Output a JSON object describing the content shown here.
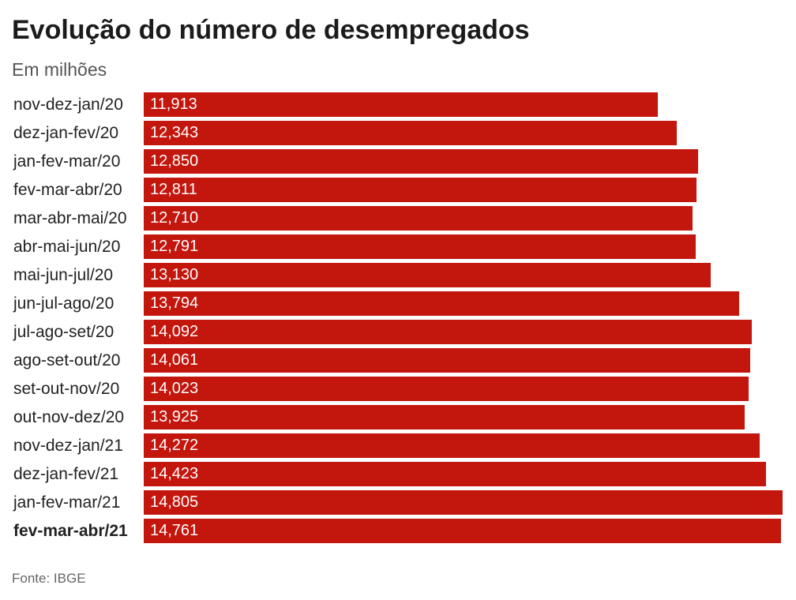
{
  "colors": {
    "bar": "#c3160d",
    "bar_text": "#ffffff",
    "text": "#222222",
    "muted_text": "#555555"
  },
  "chart_data": {
    "type": "bar",
    "orientation": "horizontal",
    "title": "Evolução do número de desempregados",
    "subtitle": "Em milhões",
    "source": "Fonte: IBGE",
    "categories": [
      "nov-dez-jan/20",
      "dez-jan-fev/20",
      "jan-fev-mar/20",
      "fev-mar-abr/20",
      "mar-abr-mai/20",
      "abr-mai-jun/20",
      "mai-jun-jul/20",
      "jun-jul-ago/20",
      "jul-ago-set/20",
      "ago-set-out/20",
      "set-out-nov/20",
      "out-nov-dez/20",
      "nov-dez-jan/21",
      "dez-jan-fev/21",
      "jan-fev-mar/21",
      "fev-mar-abr/21"
    ],
    "values": [
      11.913,
      12.343,
      12.85,
      12.811,
      12.71,
      12.791,
      13.13,
      13.794,
      14.092,
      14.061,
      14.023,
      13.925,
      14.272,
      14.423,
      14.805,
      14.761
    ],
    "value_labels": [
      "11,913",
      "12,343",
      "12,850",
      "12,811",
      "12,710",
      "12,791",
      "13,130",
      "13,794",
      "14,092",
      "14,061",
      "14,023",
      "13,925",
      "14,272",
      "14,423",
      "14,805",
      "14,761"
    ],
    "highlight_index": 15,
    "grid": false,
    "legend": "none"
  }
}
